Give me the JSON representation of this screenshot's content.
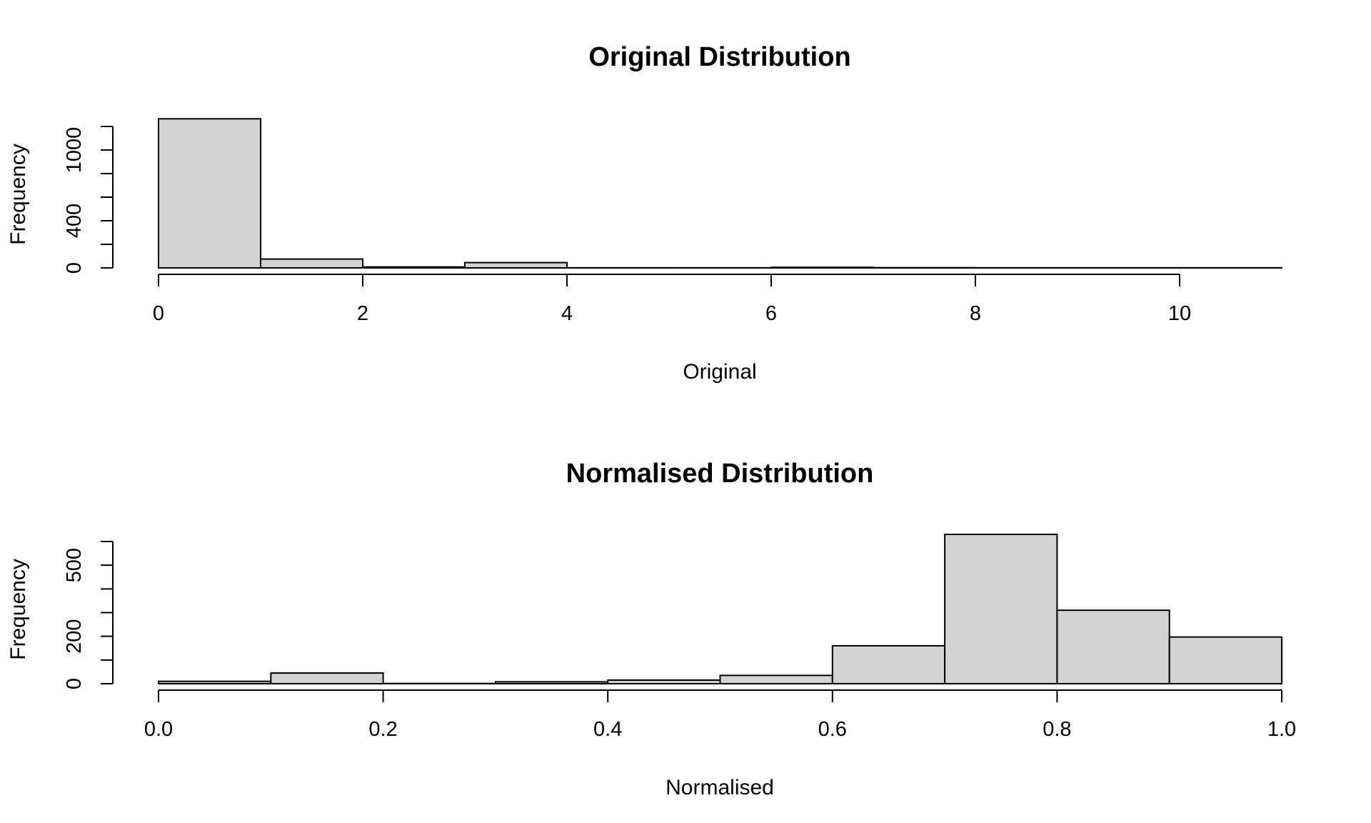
{
  "chart_data": [
    {
      "type": "bar",
      "title": "Original Distribution",
      "xlabel": "Original",
      "ylabel": "Frequency",
      "bins": [
        {
          "from": 0,
          "to": 1,
          "count": 1265
        },
        {
          "from": 1,
          "to": 2,
          "count": 75
        },
        {
          "from": 2,
          "to": 3,
          "count": 8
        },
        {
          "from": 3,
          "to": 4,
          "count": 45
        },
        {
          "from": 4,
          "to": 5,
          "count": 1
        },
        {
          "from": 5,
          "to": 6,
          "count": 1
        },
        {
          "from": 6,
          "to": 7,
          "count": 5
        },
        {
          "from": 7,
          "to": 8,
          "count": 2
        },
        {
          "from": 8,
          "to": 9,
          "count": 1
        },
        {
          "from": 9,
          "to": 10,
          "count": 1
        },
        {
          "from": 10,
          "to": 11,
          "count": 1
        }
      ],
      "xlim": [
        0,
        11
      ],
      "ylim": [
        0,
        1200
      ],
      "x_ticks": [
        0,
        2,
        4,
        6,
        8,
        10
      ],
      "x_tick_labels": [
        "0",
        "2",
        "4",
        "6",
        "8",
        "10"
      ],
      "y_ticks": [
        0,
        200,
        400,
        600,
        800,
        1000,
        1200
      ],
      "y_tick_labels": [
        "0",
        "",
        "400",
        "",
        "",
        "1000",
        ""
      ],
      "grid": false,
      "fill_color": "#d3d3d3"
    },
    {
      "type": "bar",
      "title": "Normalised Distribution",
      "xlabel": "Normalised",
      "ylabel": "Frequency",
      "bins": [
        {
          "from": 0.0,
          "to": 0.1,
          "count": 10
        },
        {
          "from": 0.1,
          "to": 0.2,
          "count": 45
        },
        {
          "from": 0.2,
          "to": 0.3,
          "count": 1
        },
        {
          "from": 0.3,
          "to": 0.4,
          "count": 8
        },
        {
          "from": 0.4,
          "to": 0.5,
          "count": 15
        },
        {
          "from": 0.5,
          "to": 0.6,
          "count": 35
        },
        {
          "from": 0.6,
          "to": 0.7,
          "count": 160
        },
        {
          "from": 0.7,
          "to": 0.8,
          "count": 630
        },
        {
          "from": 0.8,
          "to": 0.9,
          "count": 310
        },
        {
          "from": 0.9,
          "to": 1.0,
          "count": 197
        }
      ],
      "xlim": [
        0,
        1
      ],
      "ylim": [
        0,
        600
      ],
      "x_ticks": [
        0.0,
        0.2,
        0.4,
        0.6,
        0.8,
        1.0
      ],
      "x_tick_labels": [
        "0.0",
        "0.2",
        "0.4",
        "0.6",
        "0.8",
        "1.0"
      ],
      "y_ticks": [
        0,
        100,
        200,
        300,
        400,
        500,
        600
      ],
      "y_tick_labels": [
        "0",
        "",
        "200",
        "",
        "",
        "500",
        ""
      ],
      "grid": false,
      "fill_color": "#d3d3d3"
    }
  ]
}
